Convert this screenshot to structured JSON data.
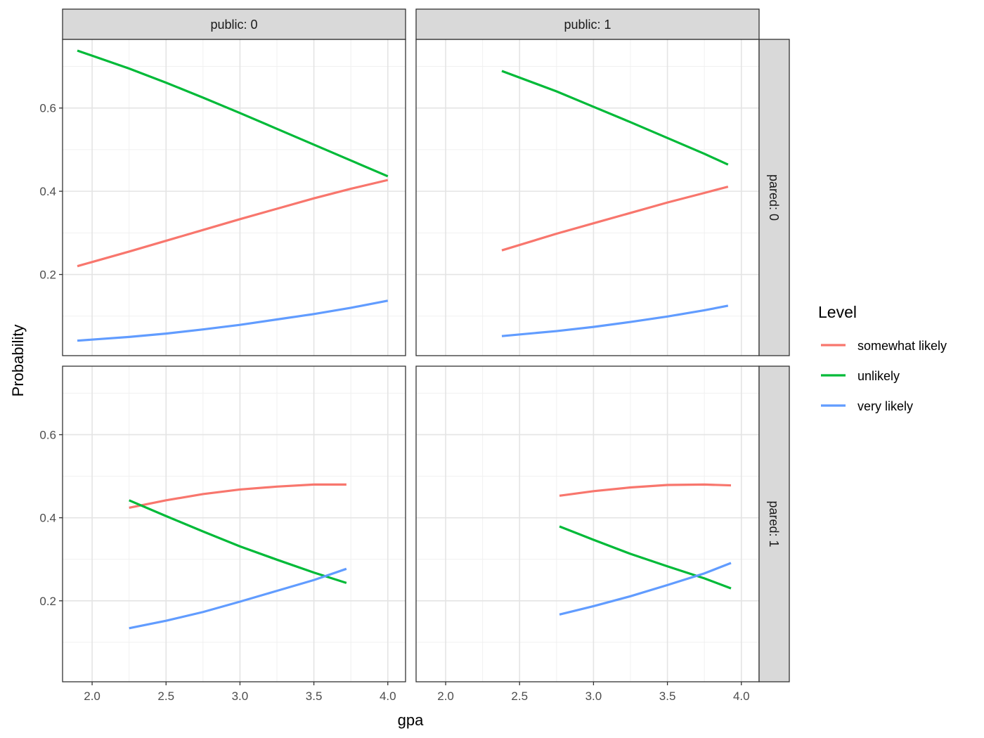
{
  "chart_data": {
    "type": "line",
    "xlabel": "gpa",
    "ylabel": "Probability",
    "xlim": [
      1.8,
      4.12
    ],
    "ylim": [
      0.005,
      0.765
    ],
    "x_ticks": [
      2.0,
      2.5,
      3.0,
      3.5,
      4.0
    ],
    "x_tick_labels": [
      "2.0",
      "2.5",
      "3.0",
      "3.5",
      "4.0"
    ],
    "y_ticks": [
      0.2,
      0.4,
      0.6
    ],
    "y_tick_labels": [
      "0.2",
      "0.4",
      "0.6"
    ],
    "grid": true,
    "legend": {
      "title": "Level",
      "position": "right",
      "entries": [
        {
          "name": "somewhat likely",
          "color": "#F8766D"
        },
        {
          "name": "unlikely",
          "color": "#00BA38"
        },
        {
          "name": "very likely",
          "color": "#619CFF"
        }
      ]
    },
    "col_strips": [
      "public: 0",
      "public: 1"
    ],
    "row_strips": [
      "pared: 0",
      "pared: 1"
    ],
    "panels": [
      {
        "col": 0,
        "row": 0,
        "series": [
          {
            "name": "somewhat likely",
            "points": [
              [
                1.9,
                0.22
              ],
              [
                2.25,
                0.255
              ],
              [
                2.5,
                0.281
              ],
              [
                2.75,
                0.307
              ],
              [
                3.0,
                0.333
              ],
              [
                3.25,
                0.358
              ],
              [
                3.5,
                0.383
              ],
              [
                3.75,
                0.406
              ],
              [
                4.0,
                0.427
              ]
            ]
          },
          {
            "name": "unlikely",
            "points": [
              [
                1.9,
                0.738
              ],
              [
                2.25,
                0.695
              ],
              [
                2.5,
                0.661
              ],
              [
                2.75,
                0.625
              ],
              [
                3.0,
                0.588
              ],
              [
                3.25,
                0.55
              ],
              [
                3.5,
                0.512
              ],
              [
                3.75,
                0.474
              ],
              [
                4.0,
                0.436
              ]
            ]
          },
          {
            "name": "very likely",
            "points": [
              [
                1.9,
                0.041
              ],
              [
                2.25,
                0.05
              ],
              [
                2.5,
                0.058
              ],
              [
                2.75,
                0.068
              ],
              [
                3.0,
                0.079
              ],
              [
                3.25,
                0.092
              ],
              [
                3.5,
                0.105
              ],
              [
                3.75,
                0.12
              ],
              [
                4.0,
                0.137
              ]
            ]
          }
        ]
      },
      {
        "col": 1,
        "row": 0,
        "series": [
          {
            "name": "somewhat likely",
            "points": [
              [
                2.38,
                0.258
              ],
              [
                2.75,
                0.298
              ],
              [
                3.0,
                0.323
              ],
              [
                3.25,
                0.348
              ],
              [
                3.5,
                0.373
              ],
              [
                3.75,
                0.396
              ],
              [
                3.91,
                0.411
              ]
            ]
          },
          {
            "name": "unlikely",
            "points": [
              [
                2.38,
                0.689
              ],
              [
                2.75,
                0.64
              ],
              [
                3.0,
                0.603
              ],
              [
                3.25,
                0.566
              ],
              [
                3.5,
                0.528
              ],
              [
                3.75,
                0.49
              ],
              [
                3.91,
                0.464
              ]
            ]
          },
          {
            "name": "very likely",
            "points": [
              [
                2.38,
                0.052
              ],
              [
                2.75,
                0.064
              ],
              [
                3.0,
                0.074
              ],
              [
                3.25,
                0.086
              ],
              [
                3.5,
                0.099
              ],
              [
                3.75,
                0.114
              ],
              [
                3.91,
                0.125
              ]
            ]
          }
        ]
      },
      {
        "col": 0,
        "row": 1,
        "series": [
          {
            "name": "somewhat likely",
            "points": [
              [
                2.25,
                0.424
              ],
              [
                2.5,
                0.442
              ],
              [
                2.75,
                0.457
              ],
              [
                3.0,
                0.468
              ],
              [
                3.25,
                0.475
              ],
              [
                3.5,
                0.48
              ],
              [
                3.72,
                0.48
              ]
            ]
          },
          {
            "name": "unlikely",
            "points": [
              [
                2.25,
                0.442
              ],
              [
                2.5,
                0.404
              ],
              [
                2.75,
                0.367
              ],
              [
                3.0,
                0.331
              ],
              [
                3.25,
                0.299
              ],
              [
                3.5,
                0.268
              ],
              [
                3.72,
                0.243
              ]
            ]
          },
          {
            "name": "very likely",
            "points": [
              [
                2.25,
                0.134
              ],
              [
                2.5,
                0.152
              ],
              [
                2.75,
                0.173
              ],
              [
                3.0,
                0.198
              ],
              [
                3.25,
                0.224
              ],
              [
                3.5,
                0.25
              ],
              [
                3.72,
                0.277
              ]
            ]
          }
        ]
      },
      {
        "col": 1,
        "row": 1,
        "series": [
          {
            "name": "somewhat likely",
            "points": [
              [
                2.77,
                0.453
              ],
              [
                3.0,
                0.464
              ],
              [
                3.25,
                0.473
              ],
              [
                3.5,
                0.479
              ],
              [
                3.75,
                0.48
              ],
              [
                3.93,
                0.478
              ]
            ]
          },
          {
            "name": "unlikely",
            "points": [
              [
                2.77,
                0.379
              ],
              [
                3.0,
                0.347
              ],
              [
                3.25,
                0.313
              ],
              [
                3.5,
                0.283
              ],
              [
                3.75,
                0.254
              ],
              [
                3.93,
                0.23
              ]
            ]
          },
          {
            "name": "very likely",
            "points": [
              [
                2.77,
                0.167
              ],
              [
                3.0,
                0.187
              ],
              [
                3.25,
                0.211
              ],
              [
                3.5,
                0.238
              ],
              [
                3.75,
                0.266
              ],
              [
                3.93,
                0.291
              ]
            ]
          }
        ]
      }
    ]
  }
}
